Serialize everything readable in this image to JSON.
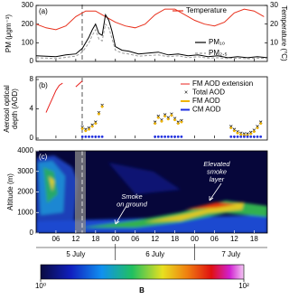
{
  "chart_data": [
    {
      "type": "line",
      "panel_label": "(a)",
      "ylabel": "PM (μgm⁻³)",
      "y2label": "Temperature (°C)",
      "xlim": [
        0,
        70
      ],
      "ylim": [
        0,
        300
      ],
      "yticks": [
        0,
        100,
        200,
        300
      ],
      "y2lim": [
        0,
        30
      ],
      "y2ticks": [
        10,
        20,
        30
      ],
      "series": [
        {
          "name": "Temperature",
          "color": "#e8301c",
          "axis": "y2",
          "x": [
            0,
            3,
            6,
            9,
            12,
            15,
            18,
            21,
            24,
            27,
            30,
            33,
            36,
            39,
            42,
            45,
            48,
            51,
            54,
            57,
            60,
            63,
            66,
            69
          ],
          "values": [
            20,
            18,
            17,
            19,
            24,
            27,
            27,
            24,
            21,
            19,
            18,
            20,
            25,
            28,
            28,
            25,
            22,
            20,
            19,
            21,
            26,
            28,
            27,
            24
          ]
        },
        {
          "name": "PM₁₀",
          "color": "#000000",
          "x": [
            0,
            3,
            6,
            9,
            12,
            14,
            16,
            17,
            18,
            19,
            20,
            21,
            22,
            23,
            24,
            26,
            28,
            31,
            34,
            37,
            40,
            43,
            46,
            49,
            52,
            55,
            58,
            61,
            64,
            67,
            70
          ],
          "values": [
            30,
            28,
            25,
            35,
            40,
            70,
            130,
            170,
            200,
            150,
            140,
            250,
            220,
            160,
            80,
            60,
            55,
            40,
            45,
            50,
            35,
            40,
            30,
            35,
            25,
            30,
            20,
            25,
            20,
            25,
            20
          ]
        },
        {
          "name": "PM₂.₅",
          "color": "#9a9a9a",
          "dash": true,
          "x": [
            0,
            3,
            6,
            9,
            12,
            14,
            16,
            17,
            18,
            19,
            20,
            21,
            22,
            23,
            24,
            26,
            28,
            31,
            34,
            37,
            40,
            43,
            46,
            49,
            52,
            55,
            58,
            61,
            64,
            67,
            70
          ],
          "values": [
            20,
            18,
            15,
            22,
            28,
            50,
            100,
            140,
            170,
            120,
            110,
            200,
            180,
            120,
            60,
            45,
            40,
            28,
            32,
            35,
            25,
            30,
            20,
            25,
            18,
            20,
            15,
            18,
            14,
            18,
            15
          ]
        }
      ]
    },
    {
      "type": "scatter",
      "panel_label": "(b)",
      "ylabel": [
        "Aerosol optical",
        "depth (AOD)"
      ],
      "xlim": [
        0,
        70
      ],
      "ylim": [
        0,
        8
      ],
      "yticks": [
        0,
        4,
        8
      ],
      "series": [
        {
          "name": "FM AOD extension",
          "color": "#e8201c",
          "style": "line",
          "x": [
            3,
            4,
            5,
            6,
            7,
            8,
            10,
            12,
            13,
            14
          ],
          "values": [
            3.5,
            4.5,
            5.5,
            6.5,
            7.2,
            7.5,
            null,
            7,
            7.4,
            7.8
          ]
        },
        {
          "name": "Total AOD",
          "color": "#000000",
          "style": "cross",
          "x": [
            14,
            15,
            16,
            17,
            18,
            19,
            20,
            36,
            37,
            38,
            39,
            40,
            41,
            42,
            43,
            44,
            59,
            60,
            61,
            62,
            63,
            64,
            65,
            66,
            67,
            68
          ],
          "values": [
            1.5,
            1.2,
            1.4,
            1.8,
            2.2,
            3.5,
            4.5,
            2.2,
            3,
            2.5,
            3.2,
            2.8,
            3.3,
            2.7,
            2.2,
            2.4,
            1.6,
            1.2,
            0.9,
            0.7,
            0.6,
            0.6,
            0.8,
            1.1,
            1.6,
            2.2
          ]
        },
        {
          "name": "FM AOD",
          "color": "#f0b400",
          "style": "dot",
          "x": [
            14,
            15,
            16,
            17,
            18,
            19,
            20,
            36,
            37,
            38,
            39,
            40,
            41,
            42,
            43,
            44,
            59,
            60,
            61,
            62,
            63,
            64,
            65,
            66,
            67,
            68
          ],
          "values": [
            1.3,
            1,
            1.2,
            1.6,
            2,
            3.3,
            4.3,
            2,
            2.8,
            2.3,
            3,
            2.6,
            3.1,
            2.5,
            2,
            2.2,
            1.4,
            1,
            0.7,
            0.5,
            0.4,
            0.4,
            0.6,
            0.9,
            1.4,
            2
          ]
        },
        {
          "name": "CM AOD",
          "color": "#1f2fe0",
          "style": "dot",
          "x": [
            14,
            15,
            16,
            17,
            18,
            19,
            20,
            36,
            37,
            38,
            39,
            40,
            41,
            42,
            43,
            44,
            59,
            60,
            61,
            62,
            63,
            64,
            65,
            66,
            67,
            68
          ],
          "values": [
            0.2,
            0.2,
            0.2,
            0.2,
            0.2,
            0.2,
            0.2,
            0.2,
            0.2,
            0.2,
            0.2,
            0.2,
            0.2,
            0.2,
            0.2,
            0.2,
            0.2,
            0.2,
            0.2,
            0.2,
            0.2,
            0.2,
            0.2,
            0.2,
            0.2,
            0.2
          ]
        }
      ]
    },
    {
      "type": "heatmap",
      "panel_label": "(c)",
      "ylabel": "Altitude (m)",
      "xlim": [
        0,
        70
      ],
      "ylim": [
        0,
        4000
      ],
      "yticks": [
        0,
        1000,
        2000,
        3000,
        4000
      ],
      "xticks": [
        {
          "value": 6,
          "label": "06"
        },
        12,
        18,
        {
          "value": 24,
          "label": "00"
        },
        {
          "value": 30,
          "label": "06"
        },
        {
          "value": 36,
          "label": "12"
        },
        {
          "value": 42,
          "label": "18"
        },
        {
          "value": 48,
          "label": "00"
        },
        {
          "value": 54,
          "label": "06"
        },
        {
          "value": 60,
          "label": "12"
        },
        {
          "value": 66,
          "label": "18"
        }
      ],
      "days": [
        "5 July",
        "6 July",
        "7 July"
      ],
      "annotations": [
        [
          "Smoke",
          "on ground"
        ],
        [
          "Elevated",
          "smoke",
          "layer"
        ]
      ],
      "colorbar": {
        "label": "B",
        "log": true,
        "lim": [
          1,
          100
        ],
        "ticks": [
          {
            "value": 1,
            "label": "10⁰"
          },
          {
            "value": 100,
            "label": "10²"
          }
        ]
      }
    }
  ]
}
